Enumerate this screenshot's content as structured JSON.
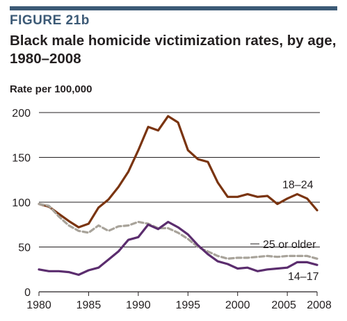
{
  "figure": {
    "label": "FIGURE 21b",
    "title": "Black male homicide victimization rates, by age, 1980–2008"
  },
  "colors": {
    "accent": "#3c5a76",
    "series_18_24": "#7a3410",
    "series_14_17": "#5b2d6e",
    "series_25_older": "#a8a39a",
    "grid": "#231f20"
  },
  "chart_data": {
    "type": "line",
    "title": "Black male homicide victimization rates, by age, 1980–2008",
    "ylabel": "Rate per 100,000",
    "xlabel": "",
    "x": [
      1980,
      1981,
      1982,
      1983,
      1984,
      1985,
      1986,
      1987,
      1988,
      1989,
      1990,
      1991,
      1992,
      1993,
      1994,
      1995,
      1996,
      1997,
      1998,
      1999,
      2000,
      2001,
      2002,
      2003,
      2004,
      2005,
      2006,
      2007,
      2008
    ],
    "xlim": [
      1980,
      2008
    ],
    "ylim": [
      0,
      200
    ],
    "x_ticks": [
      1980,
      1985,
      1990,
      1995,
      2000,
      2005,
      2008
    ],
    "x_tick_labels": [
      "1980",
      "1985",
      "1990",
      "1995",
      "2000",
      "2005",
      "2008"
    ],
    "y_ticks": [
      0,
      50,
      100,
      150,
      200
    ],
    "y_tick_labels": [
      "0",
      "50",
      "100",
      "150",
      "200"
    ],
    "grid": "horizontal",
    "legend": "inline labels",
    "series": [
      {
        "name": "18–24",
        "style": "solid",
        "values": [
          98,
          95,
          87,
          79,
          72,
          76,
          94,
          103,
          117,
          134,
          158,
          184,
          180,
          196,
          189,
          158,
          148,
          145,
          122,
          106,
          106,
          109,
          106,
          107,
          98,
          104,
          109,
          104,
          91
        ]
      },
      {
        "name": "25 or older",
        "style": "dashed",
        "values": [
          98,
          96,
          84,
          74,
          68,
          66,
          74,
          68,
          73,
          74,
          78,
          76,
          71,
          71,
          66,
          59,
          50,
          45,
          40,
          37,
          38,
          38,
          39,
          40,
          39,
          40,
          40,
          40,
          37
        ]
      },
      {
        "name": "14–17",
        "style": "solid",
        "values": [
          25,
          23,
          23,
          22,
          19,
          24,
          27,
          36,
          45,
          58,
          61,
          75,
          70,
          78,
          72,
          64,
          52,
          42,
          34,
          31,
          26,
          27,
          23,
          25,
          26,
          27,
          33,
          33,
          30
        ]
      }
    ]
  }
}
